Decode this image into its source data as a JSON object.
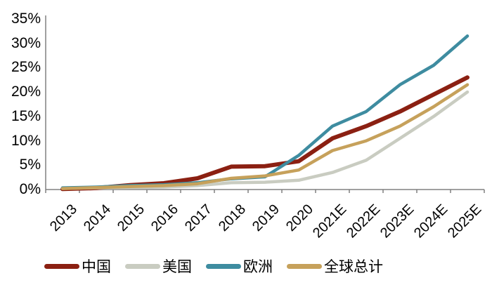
{
  "chart_data": {
    "type": "line",
    "title": "",
    "xlabel": "",
    "ylabel": "",
    "categories": [
      "2013",
      "2014",
      "2015",
      "2016",
      "2017",
      "2018",
      "2019",
      "2020",
      "2021E",
      "2022E",
      "2023E",
      "2024E",
      "2025E"
    ],
    "series": [
      {
        "name": "中国",
        "color": "#8B2012",
        "width": 6,
        "values": [
          0.1,
          0.3,
          0.9,
          1.3,
          2.3,
          4.7,
          4.8,
          5.8,
          10.5,
          13.0,
          16.0,
          19.5,
          23.0
        ]
      },
      {
        "name": "美国",
        "color": "#C9CCC1",
        "width": 4.5,
        "values": [
          0.25,
          0.35,
          0.4,
          0.5,
          0.8,
          1.4,
          1.5,
          1.9,
          3.5,
          6.0,
          10.5,
          15.0,
          20.0
        ]
      },
      {
        "name": "欧洲",
        "color": "#3E8CA0",
        "width": 4.5,
        "values": [
          0.35,
          0.5,
          0.8,
          1.0,
          1.4,
          2.2,
          2.6,
          7.0,
          13.0,
          16.0,
          21.5,
          25.5,
          31.5
        ]
      },
      {
        "name": "全球总计",
        "color": "#C6A15B",
        "width": 4.5,
        "values": [
          0.2,
          0.4,
          0.6,
          0.8,
          1.2,
          2.3,
          2.8,
          4.0,
          8.0,
          10.0,
          13.0,
          17.0,
          21.5
        ]
      }
    ],
    "yticks": [
      "0%",
      "5%",
      "10%",
      "15%",
      "20%",
      "25%",
      "30%",
      "35%"
    ],
    "ytick_values": [
      0,
      5,
      10,
      15,
      20,
      25,
      30,
      35
    ],
    "ylim": [
      0,
      35
    ],
    "grid": false,
    "legend_position": "bottom",
    "axis_color": "#808080"
  },
  "layout_note": ""
}
